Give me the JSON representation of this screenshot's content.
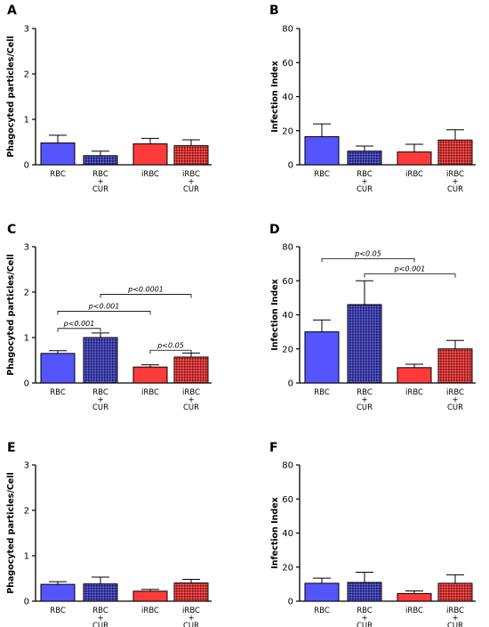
{
  "chart_data": [
    {
      "type": "bar",
      "panel": "A",
      "ylabel": "Phagocyted particles/Cell",
      "ylim": [
        0,
        3
      ],
      "yticks": [
        0,
        1,
        2,
        3
      ],
      "categories": [
        "RBC",
        "RBC\n+\nCUR",
        "iRBC",
        "iRBC\n+\nCUR"
      ],
      "values": [
        0.48,
        0.2,
        0.46,
        0.42
      ],
      "errors": [
        0.17,
        0.1,
        0.12,
        0.13
      ],
      "colors": [
        "#5555ff",
        "#303090",
        "#ff3a3a",
        "#b02828"
      ],
      "patterned": [
        false,
        true,
        false,
        true
      ],
      "significance": []
    },
    {
      "type": "bar",
      "panel": "B",
      "ylabel": "Infection Index",
      "ylim": [
        0,
        80
      ],
      "yticks": [
        0,
        20,
        40,
        60,
        80
      ],
      "categories": [
        "RBC",
        "RBC\n+\nCUR",
        "iRBC",
        "iRBC\n+\nCUR"
      ],
      "values": [
        16.5,
        8,
        7.5,
        14.5
      ],
      "errors": [
        7.5,
        3,
        4.5,
        6
      ],
      "colors": [
        "#5555ff",
        "#303090",
        "#ff3a3a",
        "#b02828"
      ],
      "patterned": [
        false,
        true,
        false,
        true
      ],
      "significance": []
    },
    {
      "type": "bar",
      "panel": "C",
      "ylabel": "Phagocyted particles/Cell",
      "ylim": [
        0,
        3
      ],
      "yticks": [
        0,
        1,
        2,
        3
      ],
      "categories": [
        "RBC",
        "RBC\n+\nCUR",
        "iRBC",
        "iRBC\n+\nCUR"
      ],
      "values": [
        0.65,
        1.0,
        0.35,
        0.57
      ],
      "errors": [
        0.06,
        0.1,
        0.05,
        0.09
      ],
      "colors": [
        "#5555ff",
        "#303090",
        "#ff3a3a",
        "#b02828"
      ],
      "patterned": [
        false,
        true,
        false,
        true
      ],
      "significance": [
        {
          "from": 0,
          "to": 1,
          "y": 1.2,
          "label": "p<0.001"
        },
        {
          "from": 0,
          "to": 2,
          "y": 1.58,
          "label": "p<0.001"
        },
        {
          "from": 1,
          "to": 3,
          "y": 1.95,
          "label": "p<0.0001"
        },
        {
          "from": 2,
          "to": 3,
          "y": 0.72,
          "label": "p<0.05"
        }
      ]
    },
    {
      "type": "bar",
      "panel": "D",
      "ylabel": "Infection Index",
      "ylim": [
        0,
        80
      ],
      "yticks": [
        0,
        20,
        40,
        60,
        80
      ],
      "categories": [
        "RBC",
        "RBC\n+\nCUR",
        "iRBC",
        "iRBC\n+\nCUR"
      ],
      "values": [
        30,
        46,
        9,
        20
      ],
      "errors": [
        7,
        14,
        2,
        5
      ],
      "colors": [
        "#5555ff",
        "#303090",
        "#ff3a3a",
        "#b02828"
      ],
      "patterned": [
        false,
        true,
        false,
        true
      ],
      "significance": [
        {
          "from": 0,
          "to": 2,
          "y": 73,
          "label": "p<0.05"
        },
        {
          "from": 1,
          "to": 3,
          "y": 64,
          "label": "p<0.001"
        }
      ]
    },
    {
      "type": "bar",
      "panel": "E",
      "ylabel": "Phagocyted particles/Cell",
      "ylim": [
        0,
        3
      ],
      "yticks": [
        0,
        1,
        2,
        3
      ],
      "categories": [
        "RBC",
        "RBC\n+\nCUR",
        "iRBC",
        "iRBC\n+\nCUR"
      ],
      "values": [
        0.37,
        0.38,
        0.22,
        0.4
      ],
      "errors": [
        0.06,
        0.15,
        0.04,
        0.08
      ],
      "colors": [
        "#5555ff",
        "#303090",
        "#ff3a3a",
        "#b02828"
      ],
      "patterned": [
        false,
        true,
        false,
        true
      ],
      "significance": []
    },
    {
      "type": "bar",
      "panel": "F",
      "ylabel": "Infection Index",
      "ylim": [
        0,
        80
      ],
      "yticks": [
        0,
        20,
        40,
        60,
        80
      ],
      "categories": [
        "RBC",
        "RBC\n+\nCUR",
        "iRBC",
        "iRBC\n+\nCUR"
      ],
      "values": [
        10.5,
        11,
        4.5,
        10.5
      ],
      "errors": [
        3,
        6,
        1.5,
        5
      ],
      "colors": [
        "#5555ff",
        "#303090",
        "#ff3a3a",
        "#b02828"
      ],
      "patterned": [
        false,
        true,
        false,
        true
      ],
      "significance": []
    }
  ]
}
